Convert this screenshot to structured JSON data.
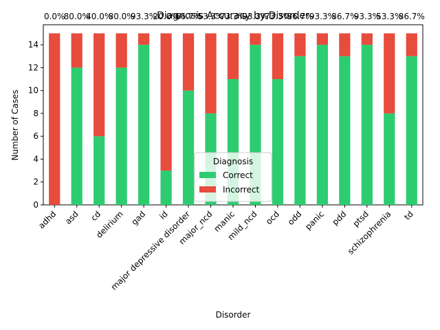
{
  "chart_data": {
    "type": "bar",
    "stacked": true,
    "title": "Diagnosis Accuracy by Disorder",
    "xlabel": "Disorder",
    "ylabel": "Number of Cases",
    "ylim": [
      0,
      15.75
    ],
    "yticks": [
      0,
      2,
      4,
      6,
      8,
      10,
      12,
      14
    ],
    "categories": [
      "adhd",
      "asd",
      "cd",
      "delirium",
      "gad",
      "id",
      "major depressive disorder",
      "major_ncd",
      "manic",
      "mild_ncd",
      "ocd",
      "odd",
      "panic",
      "pdd",
      "ptsd",
      "schizophrenia",
      "td"
    ],
    "series": [
      {
        "name": "Correct",
        "color": "#2ecc71",
        "values": [
          0,
          12,
          6,
          12,
          14,
          3,
          10,
          8,
          11,
          14,
          11,
          13,
          14,
          13,
          14,
          8,
          13
        ]
      },
      {
        "name": "Incorrect",
        "color": "#e74c3c",
        "values": [
          15,
          3,
          9,
          3,
          1,
          12,
          5,
          7,
          4,
          1,
          4,
          2,
          1,
          2,
          1,
          7,
          2
        ]
      }
    ],
    "annotations": [
      "0.0%",
      "80.0%",
      "40.0%",
      "80.0%",
      "93.3%",
      "20.0%",
      "66.7%",
      "53.3%",
      "73.3%",
      "93.3%",
      "73.3%",
      "86.7%",
      "93.3%",
      "86.7%",
      "93.3%",
      "53.3%",
      "86.7%"
    ],
    "legend": {
      "title": "Diagnosis",
      "placement": "lower-center"
    }
  }
}
